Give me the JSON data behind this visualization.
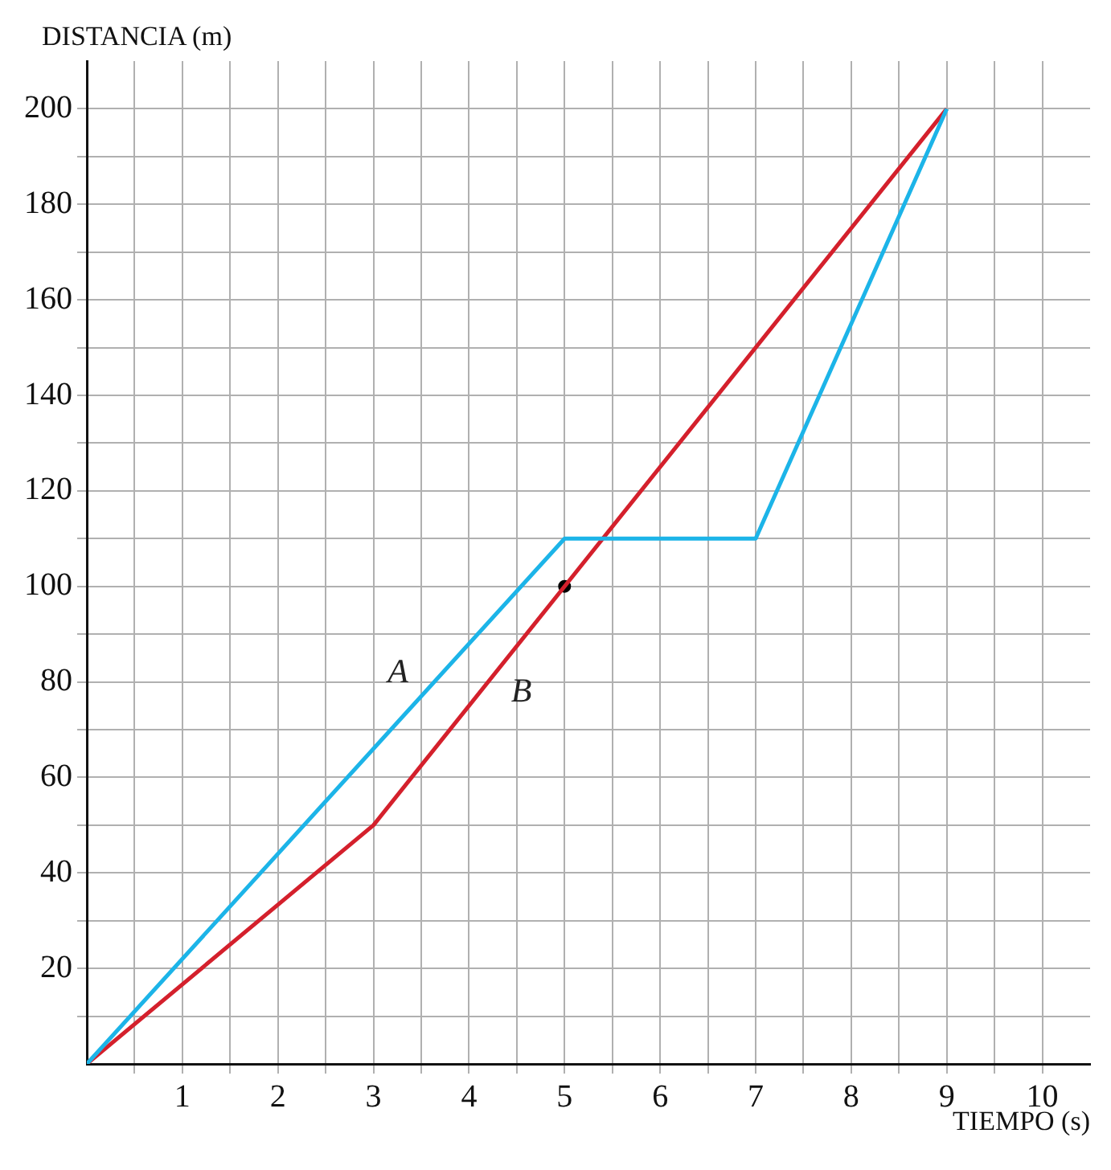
{
  "chart_data": {
    "type": "line",
    "xlabel": "TIEMPO (s)",
    "ylabel": "DISTANCIA (m)",
    "xlim": [
      0,
      10.5
    ],
    "ylim": [
      0,
      210
    ],
    "xticks": [
      {
        "value": 0.5,
        "label": null
      },
      1,
      {
        "value": 1.5,
        "label": null
      },
      2,
      {
        "value": 2.5,
        "label": null
      },
      3,
      {
        "value": 3.5,
        "label": null
      },
      4,
      {
        "value": 4.5,
        "label": null
      },
      5,
      {
        "value": 5.5,
        "label": null
      },
      6,
      {
        "value": 6.5,
        "label": null
      },
      7,
      {
        "value": 7.5,
        "label": null
      },
      8,
      {
        "value": 8.5,
        "label": null
      },
      9,
      {
        "value": 9.5,
        "label": null
      },
      10
    ],
    "yticks": [
      {
        "value": 10,
        "label": null
      },
      20,
      {
        "value": 30,
        "label": null
      },
      40,
      {
        "value": 50,
        "label": null
      },
      60,
      {
        "value": 70,
        "label": null
      },
      80,
      {
        "value": 90,
        "label": null
      },
      100,
      {
        "value": 110,
        "label": null
      },
      120,
      {
        "value": 130,
        "label": null
      },
      140,
      {
        "value": 150,
        "label": null
      },
      160,
      {
        "value": 170,
        "label": null
      },
      180,
      {
        "value": 190,
        "label": null
      },
      200
    ],
    "grid": true,
    "legend": false,
    "marker": "none",
    "line_style": "solid",
    "series": [
      {
        "name": "A",
        "color": "#1cb4e8",
        "x": [
          0,
          5,
          7,
          9
        ],
        "values": [
          0,
          110,
          110,
          200
        ]
      },
      {
        "name": "B",
        "color": "#d4202c",
        "x": [
          0,
          3,
          5,
          9
        ],
        "values": [
          0,
          50,
          100,
          200
        ]
      },
      {
        "type": "scatter",
        "color": "#000000",
        "marker": "circle",
        "x": [
          5
        ],
        "values": [
          100
        ]
      }
    ]
  }
}
